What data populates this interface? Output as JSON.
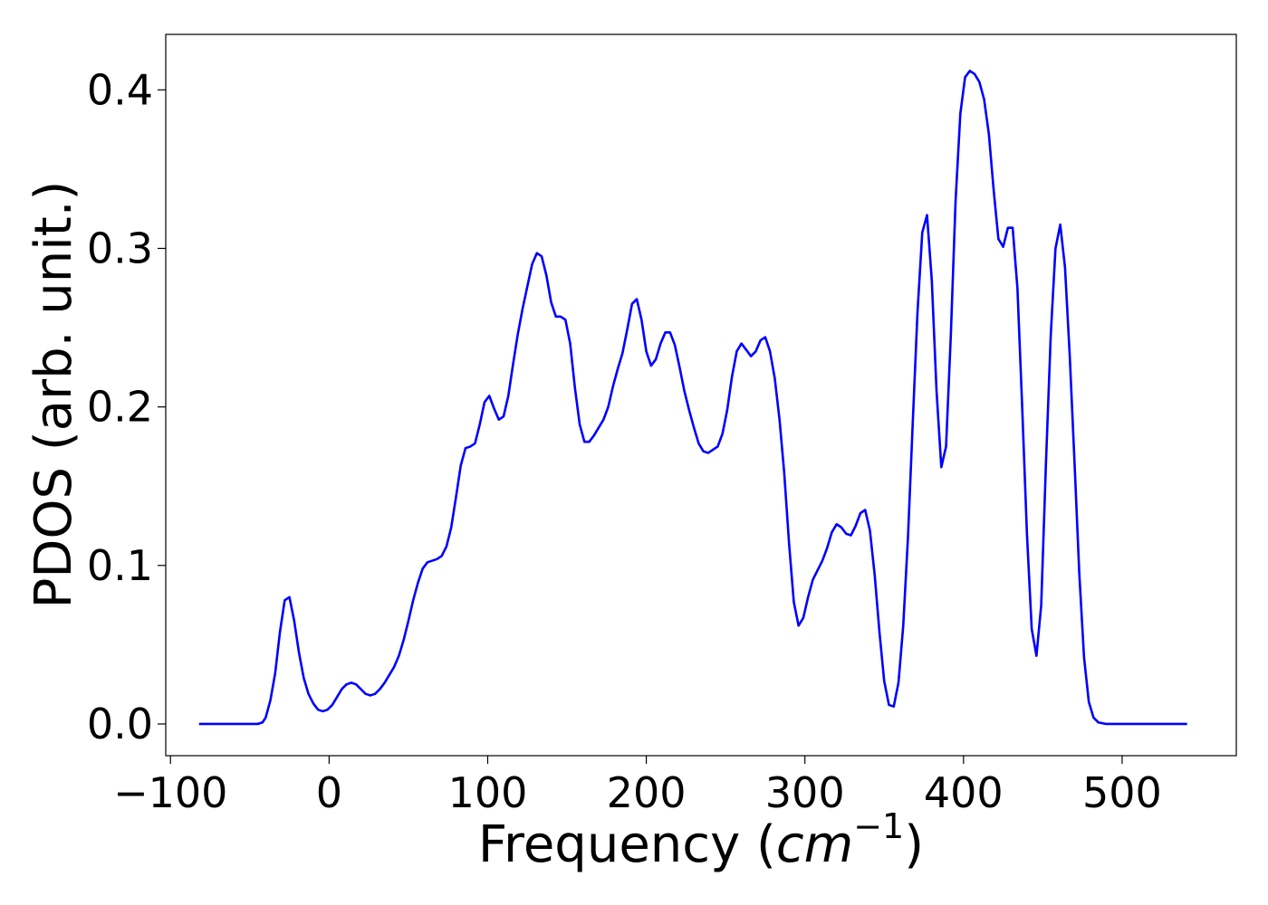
{
  "chart_data": {
    "type": "line",
    "xlabel_main": "Frequency (",
    "xlabel_unit": "cm",
    "xlabel_exp": "−1",
    "xlabel_close": ")",
    "ylabel": "PDOS (arb. unit.)",
    "xlim": [
      -103,
      572
    ],
    "ylim": [
      -0.02,
      0.435
    ],
    "xticks": [
      -100,
      0,
      100,
      200,
      300,
      400,
      500
    ],
    "xtick_labels": [
      "−100",
      "0",
      "100",
      "200",
      "300",
      "400",
      "500"
    ],
    "yticks": [
      0.0,
      0.1,
      0.2,
      0.3,
      0.4
    ],
    "ytick_labels": [
      "0.0",
      "0.1",
      "0.2",
      "0.3",
      "0.4"
    ],
    "grid": false,
    "series": [
      {
        "color": "#0000ff",
        "points": [
          [
            -82,
            0.0
          ],
          [
            -60,
            0.0
          ],
          [
            -45,
            0.0
          ],
          [
            -42,
            0.001
          ],
          [
            -40,
            0.004
          ],
          [
            -37,
            0.015
          ],
          [
            -34,
            0.032
          ],
          [
            -31,
            0.058
          ],
          [
            -28,
            0.078
          ],
          [
            -25,
            0.08
          ],
          [
            -22,
            0.065
          ],
          [
            -19,
            0.045
          ],
          [
            -16,
            0.029
          ],
          [
            -13,
            0.019
          ],
          [
            -10,
            0.013
          ],
          [
            -7,
            0.009
          ],
          [
            -4,
            0.008
          ],
          [
            -1,
            0.009
          ],
          [
            2,
            0.012
          ],
          [
            5,
            0.017
          ],
          [
            8,
            0.022
          ],
          [
            11,
            0.025
          ],
          [
            14,
            0.026
          ],
          [
            17,
            0.025
          ],
          [
            20,
            0.022
          ],
          [
            23,
            0.019
          ],
          [
            26,
            0.018
          ],
          [
            29,
            0.019
          ],
          [
            32,
            0.022
          ],
          [
            35,
            0.026
          ],
          [
            38,
            0.031
          ],
          [
            41,
            0.036
          ],
          [
            44,
            0.043
          ],
          [
            47,
            0.053
          ],
          [
            50,
            0.065
          ],
          [
            53,
            0.078
          ],
          [
            56,
            0.089
          ],
          [
            59,
            0.098
          ],
          [
            62,
            0.102
          ],
          [
            65,
            0.103
          ],
          [
            68,
            0.104
          ],
          [
            71,
            0.106
          ],
          [
            74,
            0.112
          ],
          [
            77,
            0.124
          ],
          [
            80,
            0.143
          ],
          [
            83,
            0.163
          ],
          [
            86,
            0.174
          ],
          [
            89,
            0.175
          ],
          [
            92,
            0.177
          ],
          [
            95,
            0.189
          ],
          [
            98,
            0.203
          ],
          [
            101,
            0.207
          ],
          [
            104,
            0.199
          ],
          [
            107,
            0.192
          ],
          [
            110,
            0.194
          ],
          [
            113,
            0.207
          ],
          [
            116,
            0.227
          ],
          [
            119,
            0.246
          ],
          [
            122,
            0.262
          ],
          [
            125,
            0.276
          ],
          [
            128,
            0.29
          ],
          [
            131,
            0.297
          ],
          [
            134,
            0.295
          ],
          [
            137,
            0.283
          ],
          [
            140,
            0.266
          ],
          [
            143,
            0.257
          ],
          [
            146,
            0.257
          ],
          [
            149,
            0.255
          ],
          [
            152,
            0.24
          ],
          [
            155,
            0.212
          ],
          [
            158,
            0.189
          ],
          [
            161,
            0.178
          ],
          [
            164,
            0.178
          ],
          [
            167,
            0.182
          ],
          [
            170,
            0.187
          ],
          [
            173,
            0.192
          ],
          [
            176,
            0.2
          ],
          [
            179,
            0.213
          ],
          [
            182,
            0.224
          ],
          [
            185,
            0.234
          ],
          [
            188,
            0.249
          ],
          [
            191,
            0.265
          ],
          [
            194,
            0.268
          ],
          [
            197,
            0.255
          ],
          [
            200,
            0.235
          ],
          [
            203,
            0.226
          ],
          [
            206,
            0.23
          ],
          [
            209,
            0.24
          ],
          [
            212,
            0.247
          ],
          [
            215,
            0.247
          ],
          [
            218,
            0.239
          ],
          [
            221,
            0.225
          ],
          [
            224,
            0.21
          ],
          [
            227,
            0.198
          ],
          [
            230,
            0.187
          ],
          [
            233,
            0.177
          ],
          [
            236,
            0.172
          ],
          [
            239,
            0.171
          ],
          [
            242,
            0.173
          ],
          [
            245,
            0.175
          ],
          [
            248,
            0.183
          ],
          [
            251,
            0.198
          ],
          [
            254,
            0.219
          ],
          [
            257,
            0.235
          ],
          [
            260,
            0.24
          ],
          [
            263,
            0.236
          ],
          [
            266,
            0.232
          ],
          [
            269,
            0.235
          ],
          [
            272,
            0.242
          ],
          [
            275,
            0.244
          ],
          [
            278,
            0.235
          ],
          [
            281,
            0.218
          ],
          [
            284,
            0.192
          ],
          [
            287,
            0.158
          ],
          [
            290,
            0.114
          ],
          [
            293,
            0.077
          ],
          [
            296,
            0.062
          ],
          [
            299,
            0.067
          ],
          [
            302,
            0.08
          ],
          [
            305,
            0.091
          ],
          [
            308,
            0.097
          ],
          [
            311,
            0.103
          ],
          [
            314,
            0.111
          ],
          [
            317,
            0.121
          ],
          [
            320,
            0.126
          ],
          [
            323,
            0.124
          ],
          [
            326,
            0.12
          ],
          [
            329,
            0.119
          ],
          [
            332,
            0.125
          ],
          [
            335,
            0.133
          ],
          [
            338,
            0.135
          ],
          [
            341,
            0.122
          ],
          [
            344,
            0.094
          ],
          [
            347,
            0.058
          ],
          [
            350,
            0.027
          ],
          [
            353,
            0.012
          ],
          [
            356,
            0.011
          ],
          [
            359,
            0.026
          ],
          [
            362,
            0.062
          ],
          [
            365,
            0.118
          ],
          [
            368,
            0.19
          ],
          [
            371,
            0.26
          ],
          [
            374,
            0.31
          ],
          [
            377,
            0.321
          ],
          [
            380,
            0.28
          ],
          [
            383,
            0.21
          ],
          [
            386,
            0.162
          ],
          [
            389,
            0.175
          ],
          [
            392,
            0.245
          ],
          [
            395,
            0.33
          ],
          [
            398,
            0.385
          ],
          [
            401,
            0.408
          ],
          [
            404,
            0.412
          ],
          [
            407,
            0.41
          ],
          [
            410,
            0.405
          ],
          [
            413,
            0.394
          ],
          [
            416,
            0.372
          ],
          [
            419,
            0.337
          ],
          [
            422,
            0.306
          ],
          [
            425,
            0.301
          ],
          [
            428,
            0.313
          ],
          [
            431,
            0.313
          ],
          [
            434,
            0.275
          ],
          [
            437,
            0.2
          ],
          [
            440,
            0.12
          ],
          [
            443,
            0.06
          ],
          [
            446,
            0.043
          ],
          [
            449,
            0.075
          ],
          [
            452,
            0.165
          ],
          [
            455,
            0.245
          ],
          [
            458,
            0.3
          ],
          [
            461,
            0.315
          ],
          [
            464,
            0.288
          ],
          [
            467,
            0.232
          ],
          [
            470,
            0.165
          ],
          [
            473,
            0.095
          ],
          [
            476,
            0.042
          ],
          [
            479,
            0.014
          ],
          [
            482,
            0.004
          ],
          [
            485,
            0.001
          ],
          [
            490,
            0.0
          ],
          [
            510,
            0.0
          ],
          [
            541,
            0.0
          ]
        ]
      }
    ]
  }
}
